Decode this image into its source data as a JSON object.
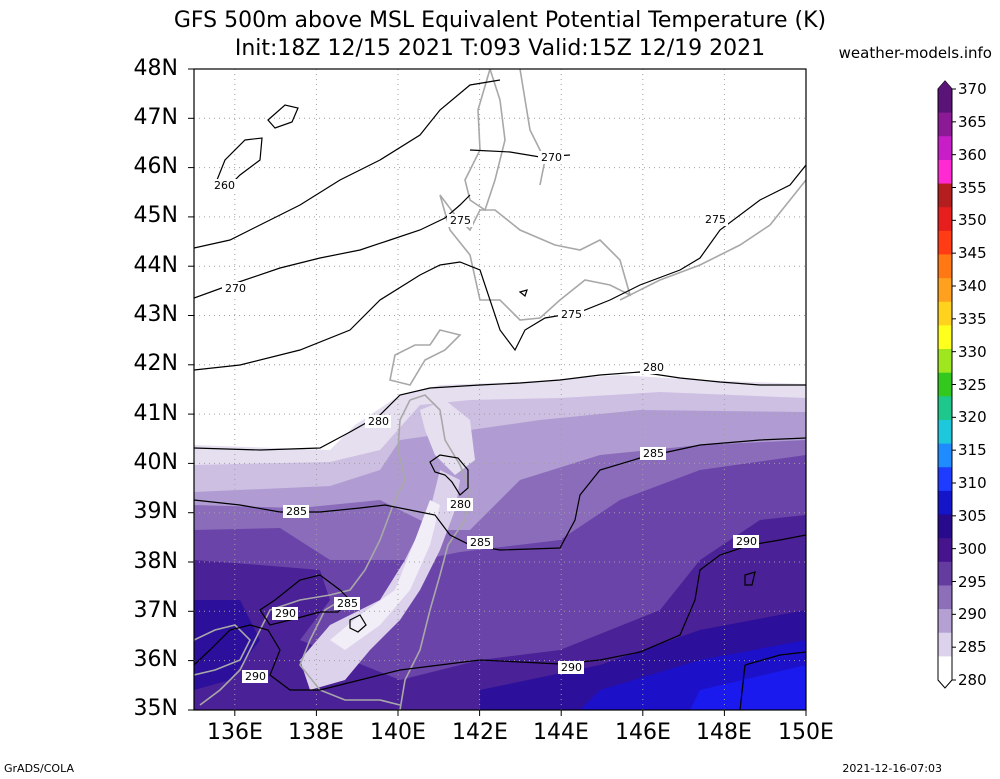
{
  "title_line1": "GFS 500m above MSL Equivalent Potential Temperature (K)",
  "title_line2": "Init:18Z 12/15 2021 T:093 Valid:15Z 12/19 2021",
  "credit": "weather-models.info",
  "footer_left": "GrADS/COLA",
  "footer_right": "2021-12-16-07:03",
  "lat_labels": [
    "48N",
    "47N",
    "46N",
    "45N",
    "44N",
    "43N",
    "42N",
    "41N",
    "40N",
    "39N",
    "38N",
    "37N",
    "36N",
    "35N"
  ],
  "lon_labels": [
    "136E",
    "138E",
    "140E",
    "142E",
    "144E",
    "146E",
    "148E",
    "150E"
  ],
  "colorbar": {
    "labels": [
      "370",
      "365",
      "360",
      "355",
      "350",
      "345",
      "340",
      "335",
      "330",
      "325",
      "320",
      "315",
      "310",
      "305",
      "300",
      "295",
      "290",
      "285",
      "280"
    ],
    "colors": [
      "#5a1478",
      "#8c1a96",
      "#c81ec8",
      "#ff2ad2",
      "#b41e1e",
      "#e61e1e",
      "#ff3c14",
      "#ff7814",
      "#ffa01e",
      "#ffd21e",
      "#ffff1e",
      "#a0e61e",
      "#32c81e",
      "#1ec88c",
      "#1ec8dc",
      "#1e8cff",
      "#1e3cff",
      "#1414c8",
      "#280a8c",
      "#46148c",
      "#643ca0",
      "#8c6eb9",
      "#b4a0d2",
      "#dcd2eb",
      "#ffffff"
    ]
  },
  "contour_labels": [
    "270",
    "260",
    "275",
    "275",
    "275",
    "270",
    "280",
    "280",
    "285",
    "280",
    "285",
    "290",
    "285",
    "285",
    "290",
    "290",
    "290"
  ],
  "field_colors": {
    "cold": "#ffffff",
    "k280": "#e6dff0",
    "k282": "#cdbfe2",
    "k284": "#b09cd2",
    "k286": "#8a6cbb",
    "k288": "#6a44a8",
    "k290": "#4a2196",
    "k292": "#2c0f9a",
    "k294": "#1c10c8",
    "k296": "#1a1aee",
    "coast": "#a8a8a8",
    "grid": "#a0a0a0"
  }
}
